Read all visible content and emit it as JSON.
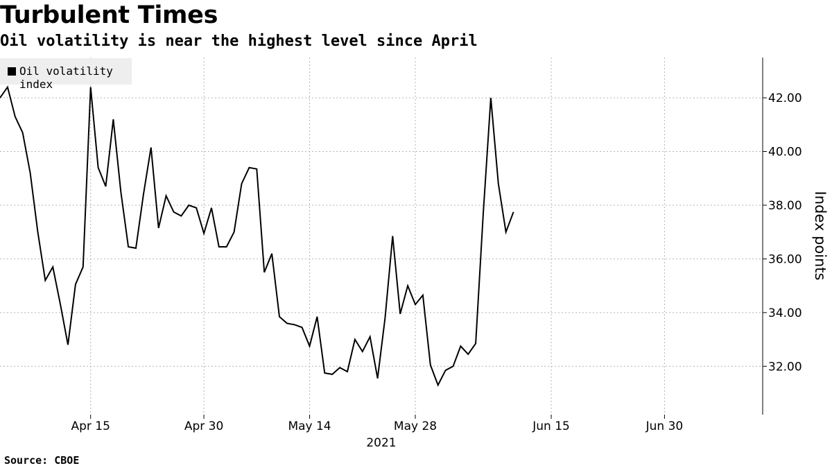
{
  "chart_data": {
    "type": "line",
    "title": "Turbulent Times",
    "subtitle": "Oil volatility is near the highest level since April",
    "source": "Source: CBOE",
    "ylabel": "Index points",
    "year_label": "2021",
    "ylim": [
      30.2,
      43.5
    ],
    "yticks": [
      32,
      34,
      36,
      38,
      40,
      42
    ],
    "ytick_labels": [
      "32.00",
      "34.00",
      "36.00",
      "38.00",
      "40.00",
      "42.00"
    ],
    "xlim": [
      "2021-04-03",
      "2021-07-13"
    ],
    "xticks": [
      "2021-04-15",
      "2021-04-30",
      "2021-05-14",
      "2021-05-28",
      "2021-06-15",
      "2021-06-30"
    ],
    "xtick_labels": [
      "Apr 15",
      "Apr 30",
      "May 14",
      "May 28",
      "Jun 15",
      "Jun 30"
    ],
    "grid": true,
    "legend_position": "top-left",
    "series": [
      {
        "name": "Oil volatility index",
        "color": "#000000",
        "points": [
          [
            "2021-04-03",
            42.0
          ],
          [
            "2021-04-04",
            42.4
          ],
          [
            "2021-04-05",
            41.3
          ],
          [
            "2021-04-06",
            40.7
          ],
          [
            "2021-04-07",
            39.2
          ],
          [
            "2021-04-08",
            37.0
          ],
          [
            "2021-04-09",
            35.2
          ],
          [
            "2021-04-10",
            35.7
          ],
          [
            "2021-04-11",
            34.3
          ],
          [
            "2021-04-12",
            32.8
          ],
          [
            "2021-04-13",
            35.05
          ],
          [
            "2021-04-14",
            35.7
          ],
          [
            "2021-04-15",
            42.4
          ],
          [
            "2021-04-16",
            39.4
          ],
          [
            "2021-04-17",
            38.7
          ],
          [
            "2021-04-18",
            41.2
          ],
          [
            "2021-04-19",
            38.5
          ],
          [
            "2021-04-20",
            36.45
          ],
          [
            "2021-04-21",
            36.4
          ],
          [
            "2021-04-22",
            38.4
          ],
          [
            "2021-04-23",
            40.15
          ],
          [
            "2021-04-24",
            37.15
          ],
          [
            "2021-04-25",
            38.35
          ],
          [
            "2021-04-26",
            37.75
          ],
          [
            "2021-04-27",
            37.6
          ],
          [
            "2021-04-28",
            38.0
          ],
          [
            "2021-04-29",
            37.9
          ],
          [
            "2021-04-30",
            36.95
          ],
          [
            "2021-05-01",
            37.9
          ],
          [
            "2021-05-02",
            36.45
          ],
          [
            "2021-05-03",
            36.45
          ],
          [
            "2021-05-04",
            37.0
          ],
          [
            "2021-05-05",
            38.8
          ],
          [
            "2021-05-06",
            39.4
          ],
          [
            "2021-05-07",
            39.35
          ],
          [
            "2021-05-08",
            35.5
          ],
          [
            "2021-05-09",
            36.2
          ],
          [
            "2021-05-10",
            33.85
          ],
          [
            "2021-05-11",
            33.6
          ],
          [
            "2021-05-12",
            33.55
          ],
          [
            "2021-05-13",
            33.45
          ],
          [
            "2021-05-14",
            32.75
          ],
          [
            "2021-05-15",
            33.85
          ],
          [
            "2021-05-16",
            31.75
          ],
          [
            "2021-05-17",
            31.7
          ],
          [
            "2021-05-18",
            31.95
          ],
          [
            "2021-05-19",
            31.8
          ],
          [
            "2021-05-20",
            33.0
          ],
          [
            "2021-05-21",
            32.55
          ],
          [
            "2021-05-22",
            33.1
          ],
          [
            "2021-05-23",
            31.55
          ],
          [
            "2021-05-24",
            33.8
          ],
          [
            "2021-05-25",
            36.85
          ],
          [
            "2021-05-26",
            33.95
          ],
          [
            "2021-05-27",
            35.0
          ],
          [
            "2021-05-28",
            34.3
          ],
          [
            "2021-05-29",
            34.65
          ],
          [
            "2021-05-30",
            32.05
          ],
          [
            "2021-05-31",
            31.3
          ],
          [
            "2021-06-01",
            31.85
          ],
          [
            "2021-06-02",
            32.0
          ],
          [
            "2021-06-03",
            32.75
          ],
          [
            "2021-06-04",
            32.45
          ],
          [
            "2021-06-05",
            32.85
          ],
          [
            "2021-06-06",
            37.7
          ],
          [
            "2021-06-07",
            42.0
          ],
          [
            "2021-06-08",
            38.8
          ],
          [
            "2021-06-09",
            37.0
          ],
          [
            "2021-06-10",
            37.75
          ]
        ]
      }
    ]
  }
}
